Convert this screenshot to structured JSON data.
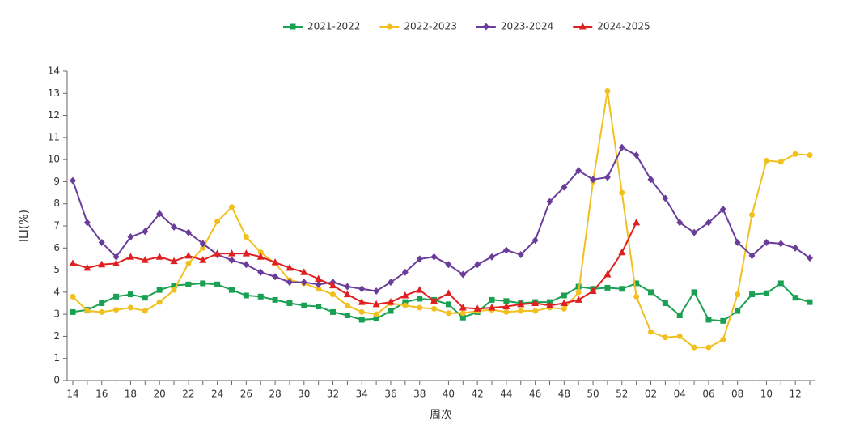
{
  "chart_data": {
    "type": "line",
    "xlabel": "周次",
    "ylabel": "ILI(%)",
    "categories": [
      "14",
      null,
      "16",
      null,
      "18",
      null,
      "20",
      null,
      "22",
      null,
      "24",
      null,
      "26",
      null,
      "28",
      null,
      "30",
      null,
      "32",
      null,
      "34",
      null,
      "36",
      null,
      "38",
      null,
      "40",
      null,
      "42",
      null,
      "44",
      null,
      "46",
      null,
      "48",
      null,
      "50",
      null,
      "52",
      null,
      "02",
      null,
      "04",
      null,
      "06",
      null,
      "08",
      null,
      "10",
      null,
      "12",
      null
    ],
    "ylim": [
      0,
      14
    ],
    "yticks": [
      0,
      1,
      2,
      3,
      4,
      5,
      6,
      7,
      8,
      9,
      10,
      11,
      12,
      13,
      14
    ],
    "legend": "top",
    "series": [
      {
        "name": "2021-2022",
        "color": "#1aa052",
        "marker": "square",
        "values": [
          3.1,
          3.2,
          3.5,
          3.8,
          3.9,
          3.75,
          4.1,
          4.3,
          4.35,
          4.4,
          4.35,
          4.1,
          3.85,
          3.8,
          3.65,
          3.5,
          3.4,
          3.35,
          3.1,
          2.95,
          2.75,
          2.8,
          3.15,
          3.55,
          3.7,
          3.65,
          3.45,
          2.85,
          3.1,
          3.65,
          3.6,
          3.5,
          3.55,
          3.55,
          3.85,
          4.25,
          4.15,
          4.2,
          4.15,
          4.4,
          4.0,
          3.5,
          2.95,
          4.0,
          2.75,
          2.7,
          3.15,
          3.9,
          3.95,
          4.4,
          3.75,
          3.55
        ]
      },
      {
        "name": "2022-2023",
        "color": "#f2c01e",
        "marker": "circle",
        "values": [
          3.8,
          3.15,
          3.1,
          3.2,
          3.3,
          3.15,
          3.55,
          4.1,
          5.3,
          6.0,
          7.2,
          7.85,
          6.5,
          5.8,
          5.3,
          4.55,
          4.4,
          4.15,
          3.9,
          3.4,
          3.1,
          3.0,
          3.5,
          3.4,
          3.3,
          3.25,
          3.05,
          3.05,
          3.15,
          3.2,
          3.1,
          3.15,
          3.15,
          3.3,
          3.25,
          4.0,
          9.0,
          13.1,
          8.5,
          3.8,
          2.2,
          1.95,
          2.0,
          1.5,
          1.5,
          1.85,
          3.9,
          7.5,
          9.95,
          9.9,
          10.25,
          10.2
        ]
      },
      {
        "name": "2023-2024",
        "color": "#6a3d9a",
        "marker": "diamond",
        "values": [
          9.05,
          7.15,
          6.25,
          5.6,
          6.5,
          6.75,
          7.55,
          6.95,
          6.7,
          6.2,
          5.7,
          5.45,
          5.25,
          4.9,
          4.7,
          4.45,
          4.45,
          4.35,
          4.45,
          4.25,
          4.15,
          4.05,
          4.45,
          4.9,
          5.5,
          5.6,
          5.25,
          4.8,
          5.25,
          5.6,
          5.9,
          5.7,
          6.35,
          8.1,
          8.75,
          9.5,
          9.1,
          9.2,
          10.55,
          10.2,
          9.1,
          8.25,
          7.15,
          6.7,
          7.15,
          7.75,
          6.25,
          5.65,
          6.25,
          6.2,
          6.0,
          5.55
        ]
      },
      {
        "name": "2024-2025",
        "color": "#e02020",
        "marker": "triangle",
        "values": [
          5.3,
          5.1,
          5.25,
          5.3,
          5.6,
          5.45,
          5.6,
          5.4,
          5.65,
          5.45,
          5.75,
          5.75,
          5.75,
          5.6,
          5.35,
          5.1,
          4.9,
          4.6,
          4.3,
          3.9,
          3.55,
          3.45,
          3.55,
          3.85,
          4.1,
          3.6,
          3.95,
          3.3,
          3.25,
          3.3,
          3.35,
          3.45,
          3.5,
          3.4,
          3.5,
          3.65,
          4.05,
          4.8,
          5.8,
          7.15,
          null,
          null,
          null,
          null,
          null,
          null,
          null,
          null,
          null,
          null,
          null,
          null
        ]
      }
    ]
  }
}
